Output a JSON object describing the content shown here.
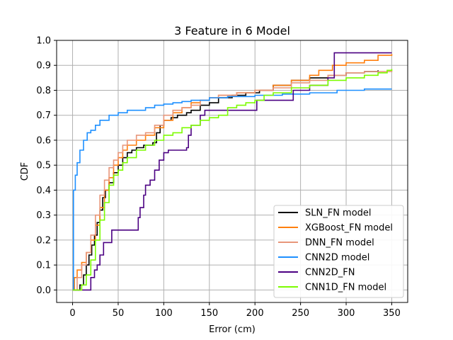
{
  "chart_data": {
    "type": "line",
    "title": "3 Feature in 6 Model",
    "xlabel": "Error (cm)",
    "ylabel": "CDF",
    "xlim": [
      -17.5,
      367.5
    ],
    "ylim": [
      -0.05,
      1.0
    ],
    "xticks": [
      0,
      50,
      100,
      150,
      200,
      250,
      300,
      350
    ],
    "yticks": [
      0.0,
      0.1,
      0.2,
      0.3,
      0.4,
      0.5,
      0.6,
      0.7,
      0.8,
      0.9,
      1.0
    ],
    "xtick_labels": [
      "0",
      "50",
      "100",
      "150",
      "200",
      "250",
      "300",
      "350"
    ],
    "ytick_labels": [
      "0.0",
      "0.1",
      "0.2",
      "0.3",
      "0.4",
      "0.5",
      "0.6",
      "0.7",
      "0.8",
      "0.9",
      "1.0"
    ],
    "grid": true,
    "legend_position": "bottom-right",
    "series": [
      {
        "name": "SLN_FN model",
        "color": "#000000",
        "points": [
          [
            0,
            0
          ],
          [
            8,
            0.02
          ],
          [
            12,
            0.06
          ],
          [
            15,
            0.1
          ],
          [
            18,
            0.14
          ],
          [
            21,
            0.18
          ],
          [
            24,
            0.22
          ],
          [
            27,
            0.27
          ],
          [
            30,
            0.32
          ],
          [
            33,
            0.37
          ],
          [
            36,
            0.4
          ],
          [
            40,
            0.43
          ],
          [
            45,
            0.47
          ],
          [
            50,
            0.5
          ],
          [
            55,
            0.53
          ],
          [
            60,
            0.55
          ],
          [
            65,
            0.56
          ],
          [
            70,
            0.57
          ],
          [
            78,
            0.58
          ],
          [
            88,
            0.59
          ],
          [
            92,
            0.63
          ],
          [
            96,
            0.66
          ],
          [
            100,
            0.68
          ],
          [
            108,
            0.69
          ],
          [
            115,
            0.7
          ],
          [
            125,
            0.71
          ],
          [
            130,
            0.72
          ],
          [
            140,
            0.74
          ],
          [
            150,
            0.75
          ],
          [
            160,
            0.77
          ],
          [
            175,
            0.78
          ],
          [
            190,
            0.79
          ],
          [
            205,
            0.8
          ],
          [
            220,
            0.82
          ],
          [
            240,
            0.84
          ],
          [
            260,
            0.85
          ],
          [
            280,
            0.86
          ],
          [
            300,
            0.87
          ],
          [
            320,
            0.875
          ],
          [
            335,
            0.88
          ]
        ]
      },
      {
        "name": "XGBoost_FN model",
        "color": "#ff7f0e",
        "points": [
          [
            0,
            0
          ],
          [
            2,
            0.05
          ],
          [
            5,
            0.08
          ],
          [
            10,
            0.11
          ],
          [
            15,
            0.15
          ],
          [
            20,
            0.2
          ],
          [
            25,
            0.26
          ],
          [
            30,
            0.33
          ],
          [
            35,
            0.4
          ],
          [
            40,
            0.45
          ],
          [
            45,
            0.5
          ],
          [
            50,
            0.53
          ],
          [
            55,
            0.56
          ],
          [
            60,
            0.58
          ],
          [
            70,
            0.6
          ],
          [
            80,
            0.62
          ],
          [
            90,
            0.65
          ],
          [
            100,
            0.68
          ],
          [
            110,
            0.71
          ],
          [
            120,
            0.73
          ],
          [
            130,
            0.75
          ],
          [
            140,
            0.76
          ],
          [
            150,
            0.77
          ],
          [
            160,
            0.78
          ],
          [
            180,
            0.79
          ],
          [
            200,
            0.8
          ],
          [
            220,
            0.82
          ],
          [
            240,
            0.84
          ],
          [
            260,
            0.86
          ],
          [
            270,
            0.88
          ],
          [
            285,
            0.9
          ],
          [
            300,
            0.91
          ],
          [
            320,
            0.92
          ],
          [
            335,
            0.94
          ],
          [
            350,
            0.945
          ]
        ]
      },
      {
        "name": "DNN_FN model",
        "color": "#e8967a",
        "points": [
          [
            0,
            0
          ],
          [
            5,
            0.05
          ],
          [
            10,
            0.1
          ],
          [
            15,
            0.15
          ],
          [
            20,
            0.22
          ],
          [
            25,
            0.3
          ],
          [
            30,
            0.38
          ],
          [
            35,
            0.44
          ],
          [
            40,
            0.49
          ],
          [
            45,
            0.52
          ],
          [
            50,
            0.55
          ],
          [
            55,
            0.58
          ],
          [
            60,
            0.6
          ],
          [
            70,
            0.62
          ],
          [
            80,
            0.63
          ],
          [
            90,
            0.66
          ],
          [
            100,
            0.7
          ],
          [
            110,
            0.72
          ],
          [
            120,
            0.73
          ],
          [
            130,
            0.74
          ],
          [
            140,
            0.76
          ],
          [
            150,
            0.77
          ],
          [
            160,
            0.78
          ],
          [
            180,
            0.79
          ],
          [
            200,
            0.8
          ],
          [
            220,
            0.81
          ],
          [
            240,
            0.83
          ],
          [
            260,
            0.84
          ],
          [
            280,
            0.86
          ],
          [
            300,
            0.87
          ],
          [
            320,
            0.875
          ],
          [
            350,
            0.88
          ]
        ]
      },
      {
        "name": "CNN2D model",
        "color": "#1e90ff",
        "points": [
          [
            0,
            0
          ],
          [
            1,
            0.4
          ],
          [
            3,
            0.46
          ],
          [
            5,
            0.51
          ],
          [
            8,
            0.56
          ],
          [
            12,
            0.6
          ],
          [
            16,
            0.63
          ],
          [
            20,
            0.64
          ],
          [
            25,
            0.66
          ],
          [
            30,
            0.68
          ],
          [
            40,
            0.7
          ],
          [
            50,
            0.71
          ],
          [
            60,
            0.72
          ],
          [
            80,
            0.73
          ],
          [
            90,
            0.74
          ],
          [
            100,
            0.745
          ],
          [
            110,
            0.75
          ],
          [
            120,
            0.755
          ],
          [
            130,
            0.76
          ],
          [
            150,
            0.77
          ],
          [
            170,
            0.775
          ],
          [
            200,
            0.78
          ],
          [
            230,
            0.785
          ],
          [
            260,
            0.79
          ],
          [
            290,
            0.8
          ],
          [
            320,
            0.805
          ],
          [
            350,
            0.805
          ]
        ]
      },
      {
        "name": "CNN2D_FN",
        "color": "#4b0082",
        "points": [
          [
            0,
            0
          ],
          [
            10,
            0.0
          ],
          [
            18,
            0.0
          ],
          [
            20,
            0.05
          ],
          [
            24,
            0.08
          ],
          [
            27,
            0.1
          ],
          [
            30,
            0.14
          ],
          [
            34,
            0.19
          ],
          [
            40,
            0.19
          ],
          [
            43,
            0.24
          ],
          [
            70,
            0.24
          ],
          [
            72,
            0.29
          ],
          [
            74,
            0.33
          ],
          [
            78,
            0.38
          ],
          [
            80,
            0.42
          ],
          [
            85,
            0.44
          ],
          [
            90,
            0.48
          ],
          [
            95,
            0.52
          ],
          [
            100,
            0.55
          ],
          [
            105,
            0.56
          ],
          [
            110,
            0.56
          ],
          [
            125,
            0.57
          ],
          [
            127,
            0.62
          ],
          [
            130,
            0.66
          ],
          [
            140,
            0.7
          ],
          [
            145,
            0.72
          ],
          [
            150,
            0.72
          ],
          [
            200,
            0.72
          ],
          [
            202,
            0.76
          ],
          [
            240,
            0.76
          ],
          [
            242,
            0.8
          ],
          [
            260,
            0.82
          ],
          [
            270,
            0.82
          ],
          [
            280,
            0.85
          ],
          [
            285,
            0.85
          ],
          [
            287,
            0.95
          ],
          [
            350,
            0.95
          ]
        ]
      },
      {
        "name": "CNN1D_FN model",
        "color": "#7cfc00",
        "points": [
          [
            0,
            0
          ],
          [
            10,
            0.02
          ],
          [
            15,
            0.06
          ],
          [
            20,
            0.12
          ],
          [
            25,
            0.2
          ],
          [
            30,
            0.28
          ],
          [
            35,
            0.35
          ],
          [
            40,
            0.42
          ],
          [
            45,
            0.46
          ],
          [
            50,
            0.48
          ],
          [
            55,
            0.51
          ],
          [
            60,
            0.53
          ],
          [
            70,
            0.56
          ],
          [
            80,
            0.58
          ],
          [
            90,
            0.6
          ],
          [
            100,
            0.62
          ],
          [
            110,
            0.63
          ],
          [
            120,
            0.65
          ],
          [
            130,
            0.66
          ],
          [
            140,
            0.68
          ],
          [
            150,
            0.69
          ],
          [
            160,
            0.7
          ],
          [
            170,
            0.73
          ],
          [
            180,
            0.74
          ],
          [
            190,
            0.75
          ],
          [
            200,
            0.76
          ],
          [
            210,
            0.78
          ],
          [
            220,
            0.79
          ],
          [
            240,
            0.81
          ],
          [
            260,
            0.82
          ],
          [
            280,
            0.84
          ],
          [
            300,
            0.85
          ],
          [
            320,
            0.86
          ],
          [
            335,
            0.87
          ],
          [
            345,
            0.88
          ],
          [
            350,
            0.885
          ]
        ]
      }
    ]
  }
}
